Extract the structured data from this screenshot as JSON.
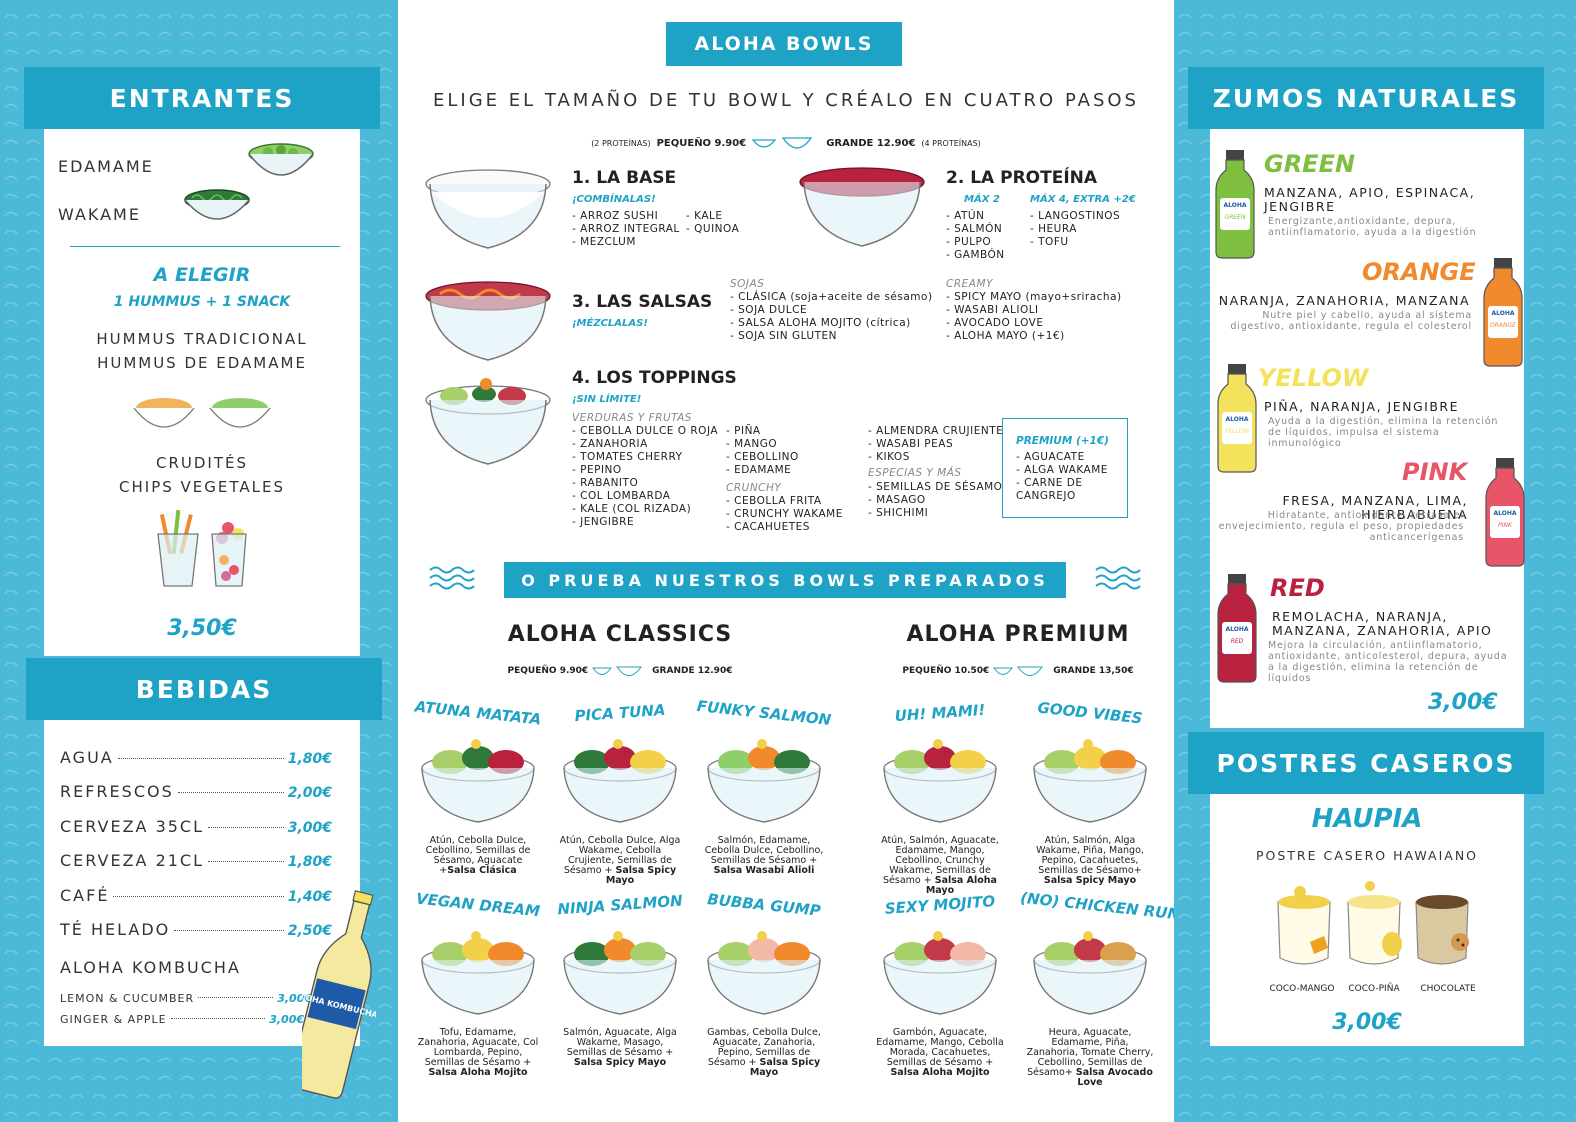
{
  "entrantes": {
    "title": "ENTRANTES",
    "items": [
      "EDAMAME",
      "WAKAME"
    ],
    "elegir_title": "A ELEGIR",
    "elegir_sub": "1 HUMMUS + 1 SNACK",
    "hummus": [
      "HUMMUS TRADICIONAL",
      "HUMMUS DE EDAMAME"
    ],
    "snacks": [
      "CRUDITÉS",
      "CHIPS VEGETALES"
    ],
    "price": "3,50€"
  },
  "bebidas": {
    "title": "BEBIDAS",
    "items": [
      {
        "name": "AGUA",
        "price": "1,80€"
      },
      {
        "name": "REFRESCOS",
        "price": "2,00€"
      },
      {
        "name": "CERVEZA 35CL",
        "price": "3,00€"
      },
      {
        "name": "CERVEZA 21CL",
        "price": "1,80€"
      },
      {
        "name": "CAFÉ",
        "price": "1,40€"
      },
      {
        "name": "TÉ HELADO",
        "price": "2,50€"
      }
    ],
    "kombucha_title": "ALOHA KOMBUCHA",
    "kombucha": [
      {
        "name": "LEMON & CUCUMBER",
        "price": "3,00€"
      },
      {
        "name": "GINGER & APPLE",
        "price": "3,00€"
      }
    ],
    "bottle_label": "ALOHA KOMBUCHA"
  },
  "center": {
    "title": "ALOHA BOWLS",
    "subtitle": "ELIGE EL TAMAÑO DE TU BOWL Y CRÉALO EN CUATRO PASOS",
    "size_small_note": "(2 PROTEÍNAS)",
    "size_small": "PEQUEÑO 9.90€",
    "size_big": "GRANDE 12.90€",
    "size_big_note": "(4 PROTEÍNAS)",
    "step1": {
      "title": "1. LA BASE",
      "sub": "¡COMBÍNALAS!",
      "col1": [
        "ARROZ SUSHI",
        "ARROZ INTEGRAL",
        "MEZCLUM"
      ],
      "col2": [
        "KALE",
        "QUINOA"
      ]
    },
    "step2": {
      "title": "2. LA PROTEÍNA",
      "max2": "MÁX 2",
      "max4": "MÁX 4, EXTRA +2€",
      "col1": [
        "ATÚN",
        "SALMÓN",
        "PULPO",
        "GAMBÓN"
      ],
      "col2": [
        "LANGOSTINOS",
        "HEURA",
        "TOFU"
      ]
    },
    "step3": {
      "title": "3. LAS SALSAS",
      "sub": "¡MÉZCLALAS!",
      "soja_title": "SOJAS",
      "soja": [
        "CLÁSICA (soja+aceite de sésamo)",
        "SOJA DULCE",
        "SALSA ALOHA MOJITO (cítrica)",
        "SOJA SIN GLUTEN"
      ],
      "creamy_title": "CREAMY",
      "creamy": [
        "SPICY MAYO (mayo+sriracha)",
        "WASABI ALIOLI",
        "AVOCADO LOVE",
        "ALOHA MAYO (+1€)"
      ]
    },
    "step4": {
      "title": "4. LOS TOPPINGS",
      "sub": "¡SIN LÍMITE!",
      "veg_title": "VERDURAS Y FRUTAS",
      "veg": [
        "CEBOLLA DULCE O ROJA",
        "ZANAHORIA",
        "TOMATES CHERRY",
        "PEPINO",
        "RABANITO",
        "COL LOMBARDA",
        "KALE (COL RIZADA)",
        "JENGIBRE"
      ],
      "fruit": [
        "PIÑA",
        "MANGO",
        "CEBOLLINO",
        "EDAMAME"
      ],
      "crunchy_title": "CRUNCHY",
      "crunchy": [
        "CEBOLLA FRITA",
        "CRUNCHY WAKAME",
        "CACAHUETES"
      ],
      "misc": [
        "ALMENDRA CRUJIENTE",
        "WASABI PEAS",
        "KIKOS"
      ],
      "spice_title": "ESPECIAS Y MÁS",
      "spice": [
        "SEMILLAS DE SÉSAMO",
        "MASAGO",
        "SHICHIMI"
      ],
      "premium_title": "PREMIUM (+1€)",
      "premium": [
        "AGUACATE",
        "ALGA WAKAME",
        "CARNE DE CANGREJO"
      ]
    },
    "prepared_title": "O PRUEBA NUESTROS BOWLS PREPARADOS",
    "classics": {
      "title": "ALOHA CLASSICS",
      "small": "PEQUEÑO 9.90€",
      "big": "GRANDE 12.90€"
    },
    "premium_bowls": {
      "title": "ALOHA PREMIUM",
      "small": "PEQUEÑO 10.50€",
      "big": "GRANDE 13,50€"
    },
    "bowls": [
      {
        "name": "ATUNA MATATA",
        "desc": "Atún, Cebolla Dulce, Cebollino, Semillas de Sésamo, Aguacate +",
        "sauce": "Salsa Clásica"
      },
      {
        "name": "PICA TUNA",
        "desc": "Atún, Cebolla Dulce, Alga Wakame, Cebolla Crujiente, Semillas de Sésamo + ",
        "sauce": "Salsa Spicy Mayo"
      },
      {
        "name": "FUNKY SALMON",
        "desc": "Salmón, Edamame, Cebolla Dulce, Cebollino, Semillas de Sésamo + ",
        "sauce": "Salsa Wasabi Alioli"
      },
      {
        "name": "UH! MAMI!",
        "desc": "Atún, Salmón, Aguacate, Edamame, Mango, Cebollino, Crunchy Wakame, Semillas de Sésamo + ",
        "sauce": "Salsa Aloha Mayo"
      },
      {
        "name": "GOOD VIBES",
        "desc": "Atún, Salmón, Alga Wakame, Piña, Mango, Pepino, Cacahuetes, Semillas de Sésamo+ ",
        "sauce": "Salsa Spicy Mayo"
      },
      {
        "name": "VEGAN DREAM",
        "desc": "Tofu, Edamame, Zanahoria, Aguacate, Col Lombarda, Pepino, Semillas de Sésamo + ",
        "sauce": "Salsa Aloha Mojito"
      },
      {
        "name": "NINJA SALMON",
        "desc": "Salmón, Aguacate, Alga Wakame, Masago, Semillas de Sésamo + ",
        "sauce": "Salsa Spicy Mayo"
      },
      {
        "name": "BUBBA GUMP",
        "desc": "Gambas, Cebolla Dulce, Aguacate, Zanahoria, Pepino, Semillas de Sésamo + ",
        "sauce": "Salsa Spicy Mayo"
      },
      {
        "name": "SEXY MOJITO",
        "desc": "Gambón, Aguacate, Edamame, Mango, Cebolla Morada, Cacahuetes, Semillas de Sésamo + ",
        "sauce": "Salsa Aloha Mojito"
      },
      {
        "name": "(NO) CHICKEN RUN",
        "desc": "Heura, Aguacate, Edamame, Piña, Zanahoria, Tomate Cherry, Cebollino, Semillas de Sésamo+ ",
        "sauce": "Salsa Avocado Love"
      }
    ]
  },
  "zumos": {
    "title": "ZUMOS NATURALES",
    "items": [
      {
        "name": "GREEN",
        "color": "#7fbf3f",
        "ing": "MANZANA, APIO, ESPINACA, JENGIBRE",
        "desc": "Energizante,antioxidante, depura, antiinflamatorio, ayuda a la digestión",
        "label": "GREEN"
      },
      {
        "name": "ORANGE",
        "color": "#f08a2c",
        "ing": "NARANJA, ZANAHORIA, MANZANA",
        "desc": "Nutre piel y cabello, ayuda al sistema digestivo, antioxidante, regula el colesterol",
        "label": "ORANGE"
      },
      {
        "name": "YELLOW",
        "color": "#f3e25c",
        "ing": "PIÑA, NARANJA, JENGIBRE",
        "desc": "Ayuda a la digestión, elimina la retención de líquidos, impulsa el sistema inmunológico",
        "label": "YELLOW"
      },
      {
        "name": "PINK",
        "color": "#e85468",
        "ing": "FRESA, MANZANA, LIMA, HIERBABUENA",
        "desc": "Hidratante, antioxidante, retrasa el envejecimiento, regula el peso, propiedades anticancerígenas",
        "label": "PINK"
      },
      {
        "name": "RED",
        "color": "#b8223f",
        "ing": "REMOLACHA, NARANJA, MANZANA, ZANAHORIA, APIO",
        "desc": "Mejora la circulación, antiinflamatorio, antioxidante, anticolesterol, depura, ayuda a la digestión, elimina la retención de líquidos",
        "label": "RED"
      }
    ],
    "price": "3,00€",
    "bottle_brand": "ALOHA"
  },
  "postres": {
    "title": "POSTRES CASEROS",
    "name": "HAUPIA",
    "sub": "POSTRE CASERO HAWAIANO",
    "flavors": [
      "COCO-MANGO",
      "COCO-PIÑA",
      "CHOCOLATE"
    ],
    "price": "3,00€"
  }
}
